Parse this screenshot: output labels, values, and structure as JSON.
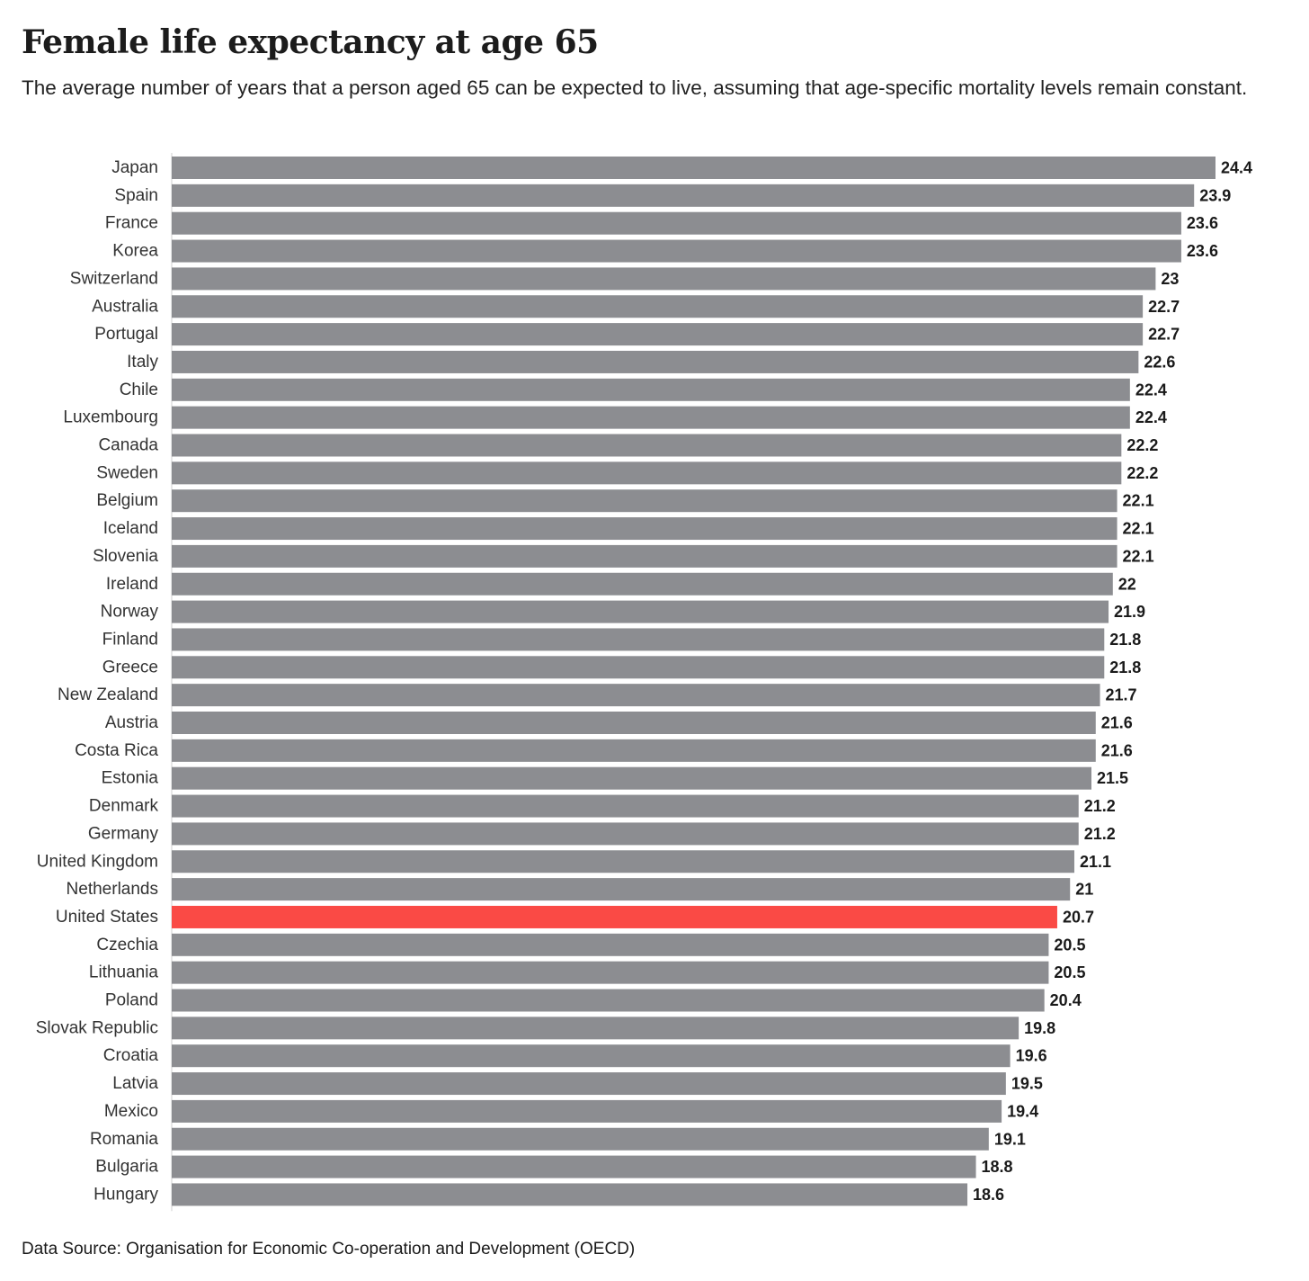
{
  "header": {
    "title": "Female life expectancy at age 65",
    "subtitle": "The average number of years that a person aged 65 can be expected to live, assuming that age-specific mortality levels remain constant."
  },
  "footer": {
    "source": "Data Source: Organisation for Economic Co-operation and Development (OECD)"
  },
  "colors": {
    "bar": "#8c8d91",
    "highlight": "#fa4a45"
  },
  "chart_data": {
    "type": "bar",
    "orientation": "horizontal",
    "title": "Female life expectancy at age 65",
    "subtitle": "The average number of years that a person aged 65 can be expected to live, assuming that age-specific mortality levels remain constant.",
    "xlabel": "",
    "ylabel": "",
    "xlim": [
      0,
      24.4
    ],
    "grid": false,
    "highlight": "United States",
    "categories": [
      "Japan",
      "Spain",
      "France",
      "Korea",
      "Switzerland",
      "Australia",
      "Portugal",
      "Italy",
      "Chile",
      "Luxembourg",
      "Canada",
      "Sweden",
      "Belgium",
      "Iceland",
      "Slovenia",
      "Ireland",
      "Norway",
      "Finland",
      "Greece",
      "New Zealand",
      "Austria",
      "Costa Rica",
      "Estonia",
      "Denmark",
      "Germany",
      "United Kingdom",
      "Netherlands",
      "United States",
      "Czechia",
      "Lithuania",
      "Poland",
      "Slovak Republic",
      "Croatia",
      "Latvia",
      "Mexico",
      "Romania",
      "Bulgaria",
      "Hungary"
    ],
    "values": [
      24.4,
      23.9,
      23.6,
      23.6,
      23,
      22.7,
      22.7,
      22.6,
      22.4,
      22.4,
      22.2,
      22.2,
      22.1,
      22.1,
      22.1,
      22,
      21.9,
      21.8,
      21.8,
      21.7,
      21.6,
      21.6,
      21.5,
      21.2,
      21.2,
      21.1,
      21,
      20.7,
      20.5,
      20.5,
      20.4,
      19.8,
      19.6,
      19.5,
      19.4,
      19.1,
      18.8,
      18.6
    ]
  }
}
